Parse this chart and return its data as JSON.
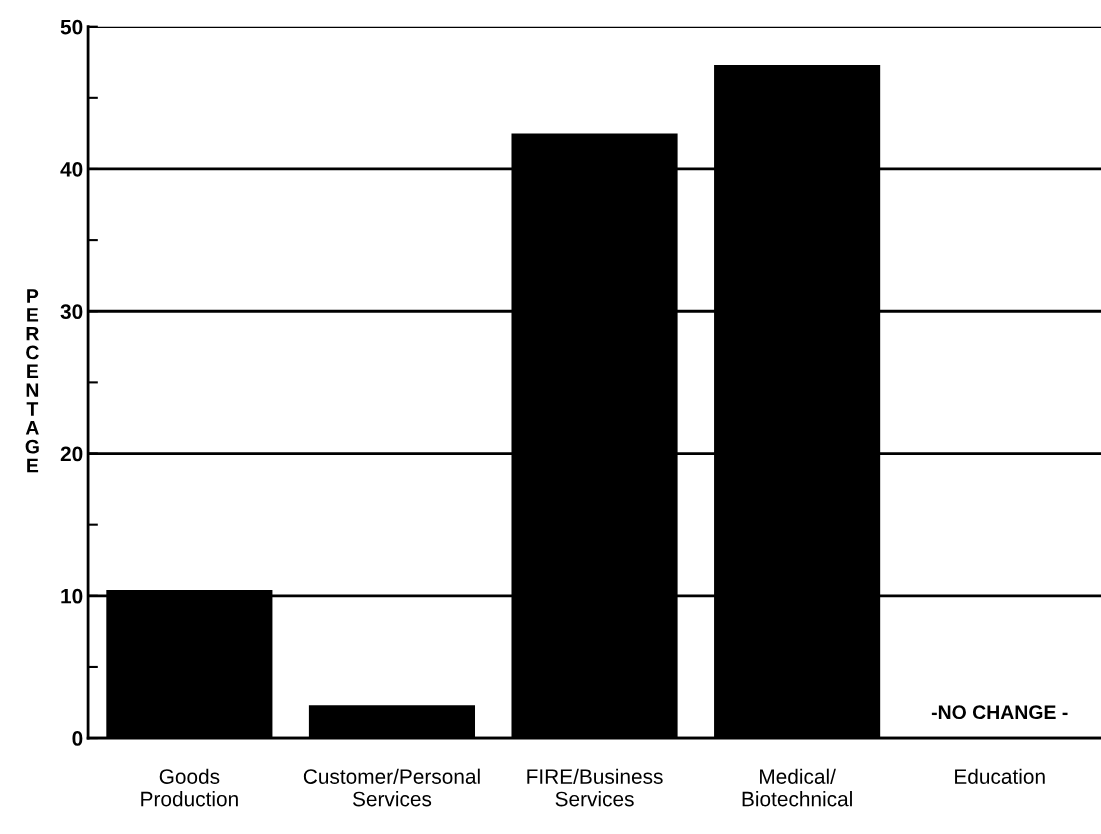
{
  "chart_data": {
    "type": "bar",
    "categories": [
      "Goods\nProduction",
      "Customer/Personal\nServices",
      "FIRE/Business\nServices",
      "Medical/\nBiotechnical",
      "Education"
    ],
    "values": [
      10.4,
      2.3,
      42.5,
      47.3,
      0
    ],
    "color": "#000000",
    "ylabel": "PERCENTAGE",
    "ylim": [
      0,
      50
    ],
    "yticks": [
      0,
      {
        "value": 5,
        "label": null
      },
      10,
      {
        "value": 15,
        "label": null
      },
      20,
      {
        "value": 25,
        "label": null
      },
      30,
      {
        "value": 35,
        "label": null
      },
      40,
      {
        "value": 45,
        "label": null
      },
      50
    ],
    "grid": "y",
    "annotations": [
      "-NO CHANGE -"
    ]
  }
}
